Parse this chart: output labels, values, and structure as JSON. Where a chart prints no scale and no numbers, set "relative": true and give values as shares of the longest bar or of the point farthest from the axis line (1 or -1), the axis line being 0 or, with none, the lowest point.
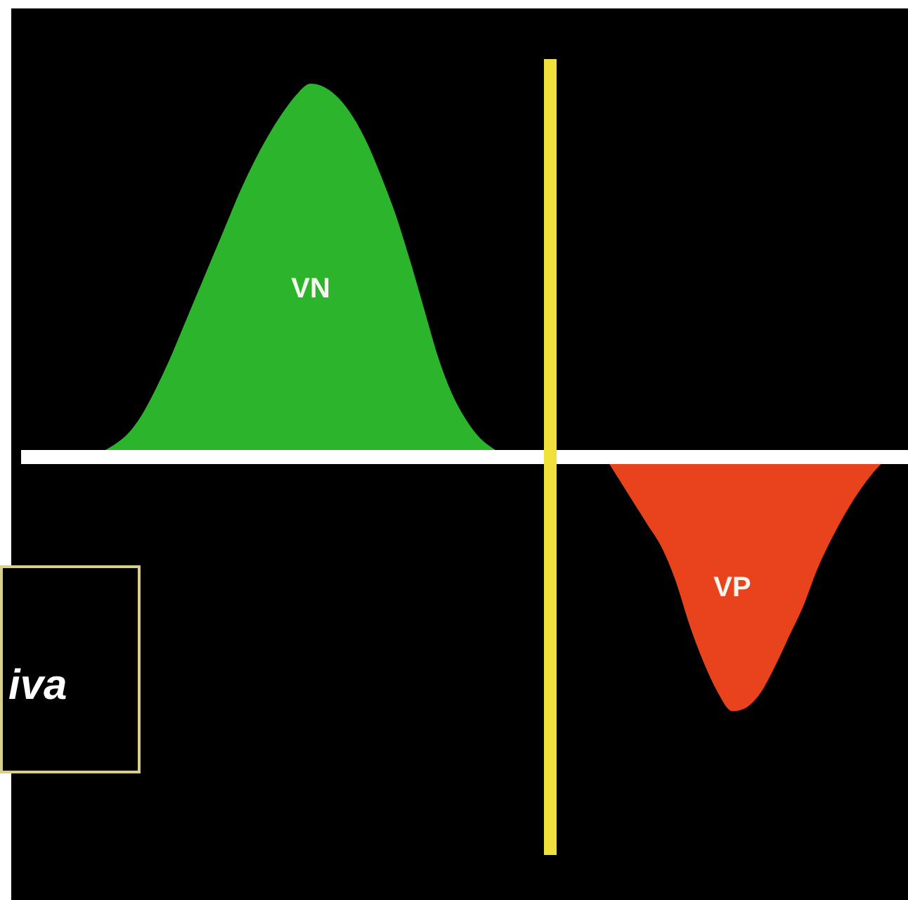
{
  "chart_data": {
    "type": "area",
    "relative": true,
    "categories": [
      null,
      null,
      null,
      null,
      null,
      null,
      null,
      null,
      null,
      null,
      null,
      null,
      null,
      null,
      null,
      null,
      null,
      null,
      null,
      null,
      null,
      null,
      null,
      null,
      null,
      null,
      null,
      null,
      null,
      null,
      null,
      null,
      null,
      null,
      null,
      null,
      null,
      null,
      null,
      null,
      null,
      null,
      null,
      null,
      null,
      null,
      null,
      null,
      null,
      null,
      null,
      null,
      null,
      null,
      null,
      null,
      null,
      null,
      null,
      null,
      null,
      null,
      null,
      null
    ],
    "series": [
      {
        "name": "VN",
        "color": "#2cb52c",
        "values": [
          null,
          null,
          null,
          null,
          null,
          0,
          0.01,
          0.03,
          0.06,
          0.11,
          0.18,
          0.26,
          0.35,
          0.44,
          0.53,
          0.62,
          0.71,
          0.79,
          0.86,
          0.92,
          0.97,
          1,
          0.99,
          0.96,
          0.91,
          0.84,
          0.75,
          0.65,
          0.53,
          0.4,
          0.27,
          0.17,
          0.1,
          0.05,
          0.02,
          0,
          null,
          null,
          null,
          null,
          null,
          null,
          null,
          null,
          null,
          null,
          null,
          null,
          null,
          null,
          null,
          null,
          null,
          null,
          null,
          null,
          null,
          null,
          null,
          null,
          null,
          null,
          null,
          null
        ]
      },
      {
        "name": "VP",
        "color": "#e8431c",
        "values": [
          null,
          null,
          null,
          null,
          null,
          null,
          null,
          null,
          null,
          null,
          null,
          null,
          null,
          null,
          null,
          null,
          null,
          null,
          null,
          null,
          null,
          null,
          null,
          null,
          null,
          null,
          null,
          null,
          null,
          null,
          null,
          null,
          null,
          null,
          null,
          null,
          null,
          null,
          null,
          null,
          null,
          null,
          0,
          -0.06,
          -0.12,
          -0.18,
          -0.24,
          -0.33,
          -0.45,
          -0.55,
          -0.63,
          -0.68,
          -0.67,
          -0.63,
          -0.56,
          -0.48,
          -0.4,
          -0.3,
          -0.22,
          -0.15,
          -0.09,
          -0.04,
          0,
          null
        ]
      }
    ],
    "annotations": [
      "iva"
    ]
  }
}
